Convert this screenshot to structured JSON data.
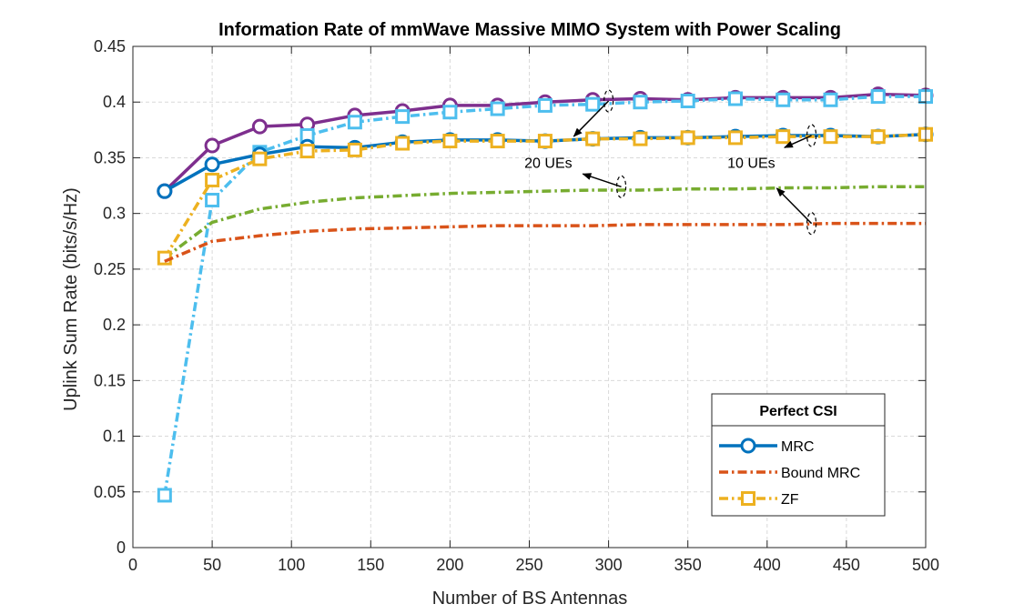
{
  "chart_data": {
    "type": "line",
    "title": "Information Rate of mmWave Massive MIMO System with Power Scaling",
    "xlabel": "Number of BS Antennas",
    "ylabel": "Uplink Sum Rate (bits/s/Hz)",
    "xlim": [
      0,
      500
    ],
    "ylim": [
      0,
      0.45
    ],
    "xticks": [
      "0",
      "50",
      "100",
      "150",
      "200",
      "250",
      "300",
      "350",
      "400",
      "450",
      "500"
    ],
    "yticks": [
      "0",
      "0.05",
      "0.1",
      "0.15",
      "0.2",
      "0.25",
      "0.3",
      "0.35",
      "0.4",
      "0.45"
    ],
    "grid": true,
    "legend": {
      "title": "Perfect CSI",
      "placement": "bottom-right",
      "entries": [
        {
          "label": "MRC",
          "color": "#0072BD",
          "dash": "solid",
          "marker": "circle"
        },
        {
          "label": "Bound MRC",
          "color": "#D95319",
          "dash": "dashdot",
          "marker": "none"
        },
        {
          "label": "ZF",
          "color": "#EDB120",
          "dash": "dashdot",
          "marker": "square"
        }
      ]
    },
    "x": [
      20,
      50,
      80,
      110,
      140,
      170,
      200,
      230,
      260,
      290,
      320,
      350,
      380,
      410,
      440,
      470,
      500
    ],
    "series": [
      {
        "color": "#7E2F8E",
        "dash": "solid",
        "marker": "circle",
        "values": [
          0.32,
          0.361,
          0.378,
          0.38,
          0.388,
          0.392,
          0.397,
          0.397,
          0.4,
          0.402,
          0.403,
          0.402,
          0.404,
          0.404,
          0.404,
          0.407,
          0.406
        ]
      },
      {
        "color": "#4DBEEE",
        "dash": "dashdot",
        "marker": "square",
        "values": [
          0.047,
          0.312,
          0.355,
          0.37,
          0.382,
          0.387,
          0.391,
          0.394,
          0.397,
          0.398,
          0.4,
          0.401,
          0.403,
          0.402,
          0.402,
          0.405,
          0.405
        ]
      },
      {
        "color": "#77AC30",
        "dash": "dashdot",
        "marker": "none",
        "values": [
          0.26,
          0.292,
          0.304,
          0.31,
          0.314,
          0.316,
          0.318,
          0.319,
          0.32,
          0.321,
          0.321,
          0.322,
          0.322,
          0.323,
          0.323,
          0.324,
          0.324
        ]
      },
      {
        "color": "#0072BD",
        "dash": "solid",
        "marker": "circle",
        "values": [
          0.32,
          0.344,
          0.353,
          0.36,
          0.359,
          0.364,
          0.366,
          0.366,
          0.365,
          0.367,
          0.368,
          0.368,
          0.369,
          0.37,
          0.37,
          0.369,
          0.371
        ]
      },
      {
        "color": "#EDB120",
        "dash": "dashdot",
        "marker": "square",
        "values": [
          0.26,
          0.33,
          0.349,
          0.356,
          0.357,
          0.363,
          0.365,
          0.365,
          0.365,
          0.367,
          0.367,
          0.368,
          0.368,
          0.369,
          0.369,
          0.369,
          0.371
        ]
      },
      {
        "color": "#D95319",
        "dash": "dashdot",
        "marker": "none",
        "values": [
          0.257,
          0.275,
          0.28,
          0.284,
          0.286,
          0.287,
          0.288,
          0.289,
          0.289,
          0.289,
          0.29,
          0.29,
          0.29,
          0.29,
          0.291,
          0.291,
          0.291
        ]
      }
    ],
    "annotations": [
      {
        "text": "20 UEs",
        "text_x": 262,
        "text_y": 0.341,
        "ellipses": [
          [
            300,
            0.401
          ],
          [
            308,
            0.324
          ]
        ]
      },
      {
        "text": "10 UEs",
        "text_x": 390,
        "text_y": 0.341,
        "ellipses": [
          [
            428,
            0.37
          ],
          [
            428,
            0.291
          ]
        ]
      }
    ]
  }
}
